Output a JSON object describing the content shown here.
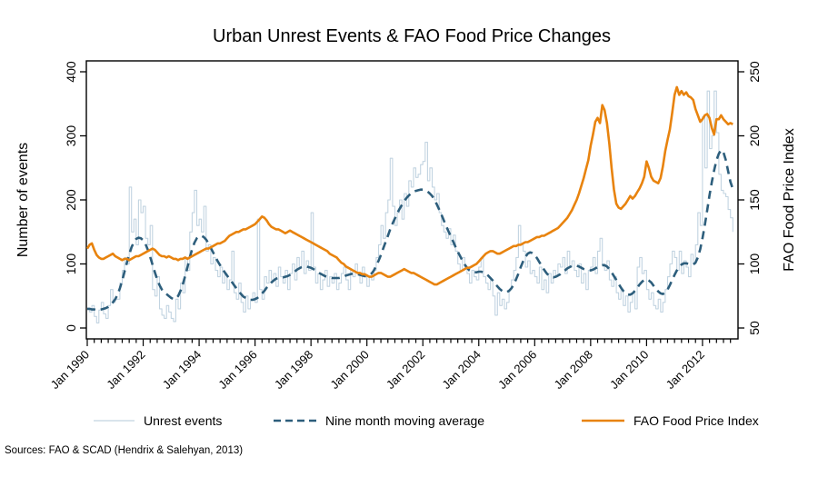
{
  "title": "Urban Unrest Events & FAO Food Price Changes",
  "source_note": "Sources: FAO & SCAD (Hendrix & Salehyan, 2013)",
  "colors": {
    "unrest": "#c2d4e1",
    "moving_average": "#2d5e7c",
    "fao": "#e8830e",
    "axis": "#000000",
    "background": "#ffffff"
  },
  "legend": [
    {
      "label": "Unrest events",
      "color": "#c2d4e1",
      "style": "thin-solid"
    },
    {
      "label": "Nine month moving average",
      "color": "#2d5e7c",
      "style": "dashed"
    },
    {
      "label": "FAO Food Price Index",
      "color": "#e8830e",
      "style": "solid"
    }
  ],
  "axes": {
    "left": {
      "title": "Number of events",
      "ticks": [
        0,
        100,
        200,
        300,
        400
      ],
      "range": [
        0,
        400
      ]
    },
    "right": {
      "title": "FAO Food Price Index",
      "ticks": [
        50,
        100,
        150,
        200,
        250
      ],
      "range": [
        50,
        250
      ]
    },
    "x": {
      "tick_labels": [
        "Jan 1990",
        "Jan 1992",
        "Jan 1994",
        "Jan 1996",
        "Jan 1998",
        "Jan 2000",
        "Jan 2002",
        "Jan 2004",
        "Jan 2006",
        "Jan 2008",
        "Jan 2010",
        "Jan 2012"
      ],
      "major_tick_every_months": 24,
      "minor_tick_every_months": 3
    }
  },
  "chart_data": {
    "type": "line",
    "title": "Urban Unrest Events & FAO Food Price Changes",
    "x_start": "1990-01",
    "x_end": "2013-02",
    "frequency": "monthly",
    "xlabel": "",
    "ylabel_left": "Number of events",
    "ylabel_right": "FAO Food Price Index",
    "ylim_left": [
      0,
      400
    ],
    "ylim_right": [
      50,
      250
    ],
    "grid": false,
    "legend_position": "bottom",
    "series": [
      {
        "name": "Unrest events",
        "axis": "left",
        "style": "step",
        "color": "#c2d4e1",
        "width": 1.1,
        "values": [
          30,
          25,
          35,
          18,
          8,
          28,
          40,
          22,
          15,
          35,
          60,
          40,
          45,
          45,
          70,
          90,
          110,
          100,
          220,
          150,
          170,
          130,
          200,
          180,
          190,
          140,
          130,
          160,
          60,
          50,
          80,
          30,
          20,
          15,
          35,
          25,
          15,
          10,
          45,
          30,
          70,
          55,
          110,
          90,
          150,
          180,
          215,
          160,
          170,
          150,
          190,
          120,
          130,
          100,
          110,
          90,
          80,
          95,
          70,
          85,
          60,
          75,
          120,
          55,
          45,
          70,
          40,
          25,
          50,
          30,
          45,
          55,
          40,
          170,
          60,
          45,
          80,
          70,
          90,
          75,
          85,
          65,
          95,
          80,
          70,
          90,
          60,
          85,
          100,
          75,
          110,
          95,
          120,
          85,
          105,
          90,
          180,
          95,
          70,
          85,
          60,
          75,
          90,
          65,
          80,
          70,
          85,
          60,
          70,
          85,
          95,
          75,
          60,
          90,
          80,
          100,
          85,
          70,
          95,
          80,
          65,
          80,
          75,
          90,
          110,
          130,
          160,
          140,
          180,
          200,
          265,
          190,
          160,
          180,
          200,
          170,
          210,
          190,
          230,
          220,
          250,
          235,
          240,
          255,
          260,
          290,
          230,
          250,
          220,
          200,
          210,
          180,
          160,
          150,
          140,
          155,
          130,
          145,
          120,
          100,
          90,
          110,
          95,
          85,
          70,
          90,
          80,
          75,
          95,
          110,
          80,
          70,
          60,
          75,
          50,
          20,
          55,
          35,
          45,
          30,
          40,
          60,
          75,
          90,
          110,
          160,
          130,
          120,
          95,
          105,
          85,
          90,
          80,
          70,
          95,
          60,
          75,
          55,
          85,
          70,
          90,
          80,
          100,
          95,
          110,
          85,
          120,
          95,
          105,
          90,
          80,
          100,
          70,
          85,
          60,
          90,
          95,
          110,
          85,
          120,
          140,
          100,
          90,
          105,
          75,
          65,
          80,
          55,
          45,
          60,
          35,
          50,
          25,
          40,
          55,
          30,
          95,
          110,
          85,
          90,
          60,
          45,
          55,
          35,
          30,
          45,
          25,
          40,
          60,
          80,
          100,
          120,
          110,
          90,
          120,
          85,
          105,
          95,
          80,
          115,
          100,
          130,
          180,
          160,
          330,
          250,
          370,
          280,
          300,
          370,
          305,
          240,
          215,
          210,
          205,
          185,
          172,
          150
        ]
      },
      {
        "name": "Nine month moving average",
        "axis": "left",
        "style": "dashed",
        "color": "#2d5e7c",
        "width": 2.6,
        "values": [
          30,
          30,
          29,
          29,
          28,
          28,
          29,
          30,
          31,
          33,
          36,
          40,
          45,
          52,
          62,
          74,
          88,
          102,
          115,
          126,
          134,
          139,
          141,
          140,
          137,
          131,
          122,
          111,
          99,
          87,
          76,
          67,
          60,
          56,
          53,
          50,
          47,
          45,
          46,
          50,
          58,
          68,
          81,
          95,
          110,
          123,
          133,
          140,
          143,
          144,
          142,
          138,
          132,
          125,
          118,
          111,
          104,
          98,
          92,
          87,
          82,
          77,
          72,
          67,
          62,
          57,
          53,
          49,
          47,
          45,
          44,
          44,
          45,
          47,
          50,
          54,
          58,
          63,
          67,
          71,
          74,
          77,
          78,
          79,
          79,
          80,
          81,
          83,
          85,
          88,
          91,
          93,
          95,
          96,
          96,
          95,
          94,
          92,
          90,
          87,
          85,
          83,
          81,
          80,
          79,
          78,
          78,
          78,
          78,
          79,
          80,
          82,
          83,
          84,
          85,
          85,
          84,
          83,
          82,
          81,
          81,
          82,
          85,
          90,
          97,
          105,
          114,
          124,
          134,
          144,
          154,
          163,
          171,
          179,
          186,
          192,
          198,
          203,
          207,
          210,
          213,
          214,
          215,
          216,
          216,
          215,
          213,
          210,
          206,
          200,
          193,
          185,
          177,
          168,
          159,
          151,
          143,
          135,
          127,
          119,
          112,
          105,
          99,
          94,
          90,
          88,
          87,
          87,
          88,
          88,
          87,
          85,
          82,
          78,
          74,
          69,
          65,
          61,
          58,
          56,
          56,
          58,
          62,
          68,
          76,
          85,
          95,
          104,
          111,
          116,
          118,
          117,
          114,
          109,
          103,
          97,
          91,
          86,
          82,
          80,
          79,
          80,
          82,
          84,
          87,
          90,
          93,
          95,
          97,
          97,
          97,
          96,
          94,
          92,
          91,
          90,
          90,
          91,
          93,
          95,
          97,
          98,
          98,
          96,
          92,
          87,
          81,
          75,
          69,
          63,
          58,
          54,
          52,
          52,
          54,
          58,
          63,
          68,
          72,
          75,
          76,
          74,
          71,
          66,
          61,
          57,
          54,
          53,
          55,
          60,
          67,
          75,
          83,
          90,
          95,
          99,
          101,
          101,
          100,
          99,
          99,
          102,
          110,
          123,
          140,
          161,
          184,
          207,
          228,
          246,
          262,
          272,
          278,
          274,
          262,
          245,
          228,
          217
        ]
      },
      {
        "name": "FAO Food Price Index",
        "axis": "right",
        "style": "solid",
        "color": "#e8830e",
        "width": 2.6,
        "values": [
          112,
          115,
          116,
          111,
          107,
          105,
          104,
          104,
          105,
          106,
          107,
          108,
          106,
          105,
          104,
          103,
          104,
          104,
          103,
          104,
          105,
          106,
          106,
          107,
          108,
          109,
          110,
          111,
          112,
          111,
          109,
          107,
          106,
          106,
          105,
          106,
          105,
          104,
          104,
          103,
          104,
          104,
          105,
          104,
          105,
          106,
          107,
          108,
          109,
          110,
          111,
          112,
          112,
          113,
          114,
          115,
          116,
          116,
          117,
          118,
          120,
          122,
          123,
          124,
          125,
          125,
          126,
          127,
          127,
          128,
          129,
          130,
          131,
          133,
          135,
          137,
          136,
          134,
          131,
          129,
          128,
          127,
          127,
          126,
          125,
          124,
          125,
          126,
          125,
          124,
          123,
          122,
          121,
          120,
          119,
          118,
          117,
          116,
          115,
          114,
          113,
          112,
          111,
          110,
          108,
          107,
          106,
          105,
          103,
          101,
          100,
          98,
          97,
          96,
          95,
          94,
          93,
          93,
          92,
          92,
          91,
          90,
          90,
          91,
          92,
          93,
          93,
          92,
          91,
          90,
          90,
          91,
          92,
          93,
          94,
          95,
          96,
          95,
          94,
          93,
          93,
          92,
          91,
          90,
          89,
          88,
          87,
          86,
          85,
          84,
          84,
          85,
          86,
          87,
          88,
          89,
          90,
          91,
          92,
          93,
          94,
          95,
          96,
          97,
          97,
          98,
          99,
          100,
          102,
          104,
          106,
          108,
          109,
          110,
          110,
          109,
          108,
          108,
          109,
          110,
          111,
          112,
          113,
          114,
          114,
          115,
          115,
          116,
          117,
          117,
          118,
          119,
          120,
          121,
          121,
          122,
          122,
          123,
          124,
          125,
          126,
          127,
          128,
          130,
          132,
          134,
          136,
          139,
          142,
          146,
          150,
          155,
          161,
          167,
          174,
          181,
          192,
          201,
          211,
          214,
          210,
          224,
          220,
          210,
          194,
          175,
          158,
          147,
          144,
          143,
          145,
          147,
          150,
          153,
          151,
          153,
          156,
          159,
          163,
          168,
          180,
          175,
          168,
          165,
          164,
          163,
          167,
          176,
          188,
          197,
          205,
          218,
          232,
          238,
          232,
          235,
          232,
          234,
          231,
          230,
          228,
          221,
          216,
          211,
          213,
          216,
          217,
          214,
          206,
          201,
          213,
          213,
          216,
          213,
          211,
          209,
          210,
          209
        ]
      }
    ]
  }
}
